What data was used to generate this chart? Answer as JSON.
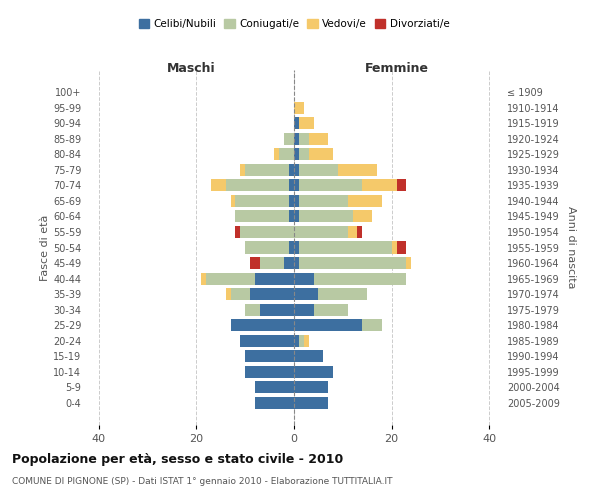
{
  "age_groups": [
    "0-4",
    "5-9",
    "10-14",
    "15-19",
    "20-24",
    "25-29",
    "30-34",
    "35-39",
    "40-44",
    "45-49",
    "50-54",
    "55-59",
    "60-64",
    "65-69",
    "70-74",
    "75-79",
    "80-84",
    "85-89",
    "90-94",
    "95-99",
    "100+"
  ],
  "birth_years": [
    "2005-2009",
    "2000-2004",
    "1995-1999",
    "1990-1994",
    "1985-1989",
    "1980-1984",
    "1975-1979",
    "1970-1974",
    "1965-1969",
    "1960-1964",
    "1955-1959",
    "1950-1954",
    "1945-1949",
    "1940-1944",
    "1935-1939",
    "1930-1934",
    "1925-1929",
    "1920-1924",
    "1915-1919",
    "1910-1914",
    "≤ 1909"
  ],
  "colors": {
    "celibi": "#3d6fa0",
    "coniugati": "#b8c9a3",
    "vedovi": "#f5c96a",
    "divorziati": "#c0302a"
  },
  "males": {
    "celibi": [
      8,
      8,
      10,
      10,
      11,
      13,
      7,
      9,
      8,
      2,
      1,
      0,
      1,
      1,
      1,
      1,
      0,
      0,
      0,
      0,
      0
    ],
    "coniugati": [
      0,
      0,
      0,
      0,
      0,
      0,
      3,
      4,
      10,
      5,
      9,
      11,
      11,
      11,
      13,
      9,
      3,
      2,
      0,
      0,
      0
    ],
    "vedovi": [
      0,
      0,
      0,
      0,
      0,
      0,
      0,
      1,
      1,
      0,
      0,
      0,
      0,
      1,
      3,
      1,
      1,
      0,
      0,
      0,
      0
    ],
    "divorziati": [
      0,
      0,
      0,
      0,
      0,
      0,
      0,
      0,
      0,
      2,
      0,
      1,
      0,
      0,
      0,
      0,
      0,
      0,
      0,
      0,
      0
    ]
  },
  "females": {
    "celibi": [
      7,
      7,
      8,
      6,
      1,
      14,
      4,
      5,
      4,
      1,
      1,
      0,
      1,
      1,
      1,
      1,
      1,
      1,
      1,
      0,
      0
    ],
    "coniugati": [
      0,
      0,
      0,
      0,
      1,
      4,
      7,
      10,
      19,
      22,
      19,
      11,
      11,
      10,
      13,
      8,
      2,
      2,
      0,
      0,
      0
    ],
    "vedovi": [
      0,
      0,
      0,
      0,
      1,
      0,
      0,
      0,
      0,
      1,
      1,
      2,
      4,
      7,
      7,
      8,
      5,
      4,
      3,
      2,
      0
    ],
    "divorziati": [
      0,
      0,
      0,
      0,
      0,
      0,
      0,
      0,
      0,
      0,
      2,
      1,
      0,
      0,
      2,
      0,
      0,
      0,
      0,
      0,
      0
    ]
  },
  "xlim": [
    -43,
    43
  ],
  "xticks": [
    -40,
    -20,
    0,
    20,
    40
  ],
  "xtick_labels": [
    "40",
    "20",
    "0",
    "20",
    "40"
  ],
  "title": "Popolazione per età, sesso e stato civile - 2010",
  "subtitle": "COMUNE DI PIGNONE (SP) - Dati ISTAT 1° gennaio 2010 - Elaborazione TUTTITALIA.IT",
  "ylabel_left": "Fasce di età",
  "ylabel_right": "Anni di nascita",
  "label_maschi": "Maschi",
  "label_femmine": "Femmine",
  "legend_labels": [
    "Celibi/Nubili",
    "Coniugati/e",
    "Vedovi/e",
    "Divorziati/e"
  ],
  "background_color": "#ffffff",
  "grid_color": "#cccccc"
}
